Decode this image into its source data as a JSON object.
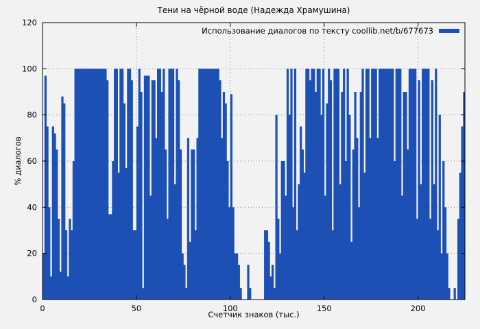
{
  "title": "Тени на чёрной воде (Надежда Храмушина)",
  "legend": {
    "label": "Использование диалогов по тексту coollib.net/b/677673",
    "color": "#1d50b4"
  },
  "chart_data": {
    "type": "bar",
    "title": "Тени на чёрной воде (Надежда Храмушина)",
    "xlabel": "Счетчик знаков (тыс.)",
    "ylabel": "% диалогов",
    "xlim": [
      0,
      225
    ],
    "ylim": [
      0,
      120
    ],
    "xticks": [
      0,
      50,
      100,
      150,
      200
    ],
    "yticks": [
      0,
      20,
      40,
      60,
      80,
      100,
      120
    ],
    "grid": true,
    "legend_position": "top-right",
    "series_name": "Использование диалогов по тексту coollib.net/b/677673",
    "color": "#1d50b4",
    "grid_color": "#8a8a8a",
    "x_step": 1,
    "values": [
      20,
      97,
      75,
      40,
      10,
      75,
      72,
      65,
      35,
      12,
      88,
      85,
      30,
      10,
      35,
      30,
      60,
      100,
      100,
      100,
      100,
      100,
      100,
      100,
      100,
      100,
      100,
      100,
      100,
      100,
      100,
      100,
      100,
      100,
      95,
      37,
      37,
      60,
      100,
      100,
      55,
      100,
      100,
      85,
      57,
      100,
      100,
      95,
      30,
      30,
      75,
      100,
      90,
      5,
      97,
      97,
      97,
      45,
      95,
      95,
      70,
      100,
      100,
      90,
      100,
      65,
      35,
      100,
      100,
      100,
      50,
      100,
      95,
      65,
      20,
      15,
      5,
      70,
      25,
      65,
      65,
      30,
      70,
      100,
      100,
      100,
      100,
      100,
      100,
      100,
      100,
      100,
      100,
      100,
      95,
      70,
      90,
      85,
      60,
      40,
      89,
      40,
      20,
      20,
      15,
      5,
      0,
      0,
      0,
      15,
      5,
      0,
      0,
      0,
      0,
      0,
      0,
      0,
      30,
      30,
      25,
      10,
      15,
      5,
      80,
      35,
      20,
      60,
      60,
      45,
      100,
      80,
      100,
      40,
      100,
      30,
      50,
      75,
      65,
      55,
      100,
      100,
      95,
      100,
      100,
      90,
      100,
      100,
      80,
      100,
      45,
      85,
      100,
      95,
      30,
      100,
      100,
      100,
      50,
      90,
      100,
      60,
      100,
      80,
      25,
      65,
      90,
      70,
      40,
      90,
      100,
      55,
      100,
      100,
      70,
      100,
      100,
      100,
      70,
      100,
      100,
      100,
      100,
      100,
      100,
      100,
      100,
      60,
      100,
      100,
      100,
      45,
      90,
      90,
      65,
      100,
      100,
      100,
      100,
      35,
      95,
      50,
      100,
      100,
      100,
      100,
      35,
      95,
      50,
      100,
      30,
      80,
      20,
      60,
      40,
      20,
      5,
      0,
      0,
      5,
      0,
      35,
      55,
      75,
      90,
      93
    ]
  }
}
